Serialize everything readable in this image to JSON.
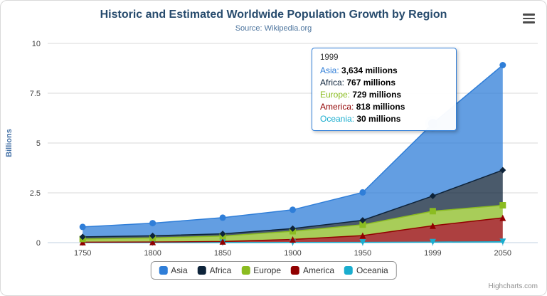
{
  "header": {
    "title": "Historic and Estimated Worldwide Population Growth by Region",
    "subtitle": "Source: Wikipedia.org"
  },
  "chart_data": {
    "type": "area",
    "stacked": true,
    "categories": [
      "1750",
      "1800",
      "1850",
      "1900",
      "1950",
      "1999",
      "2050"
    ],
    "values_unit": "millions",
    "ylabel": "Billions",
    "ylim": [
      0,
      10
    ],
    "yticks": [
      0,
      2.5,
      5,
      7.5,
      10
    ],
    "legend_position": "bottom",
    "grid": true,
    "series": [
      {
        "name": "Asia",
        "color": "#2f7ed8",
        "marker": "circle",
        "values": [
          502,
          635,
          809,
          947,
          1402,
          3634,
          5268
        ]
      },
      {
        "name": "Africa",
        "color": "#0d233a",
        "marker": "diamond",
        "values": [
          106,
          107,
          111,
          133,
          221,
          767,
          1766
        ]
      },
      {
        "name": "Europe",
        "color": "#8bbc21",
        "marker": "square",
        "values": [
          163,
          203,
          276,
          408,
          547,
          729,
          628
        ]
      },
      {
        "name": "America",
        "color": "#910000",
        "marker": "triangle",
        "values": [
          18,
          31,
          54,
          156,
          339,
          818,
          1201
        ]
      },
      {
        "name": "Oceania",
        "color": "#1aadce",
        "marker": "triangle-down",
        "values": [
          2,
          2,
          2,
          6,
          13,
          30,
          46
        ]
      }
    ]
  },
  "tooltip": {
    "header": "1999",
    "rows": [
      {
        "name": "Asia",
        "value": "3,634 millions"
      },
      {
        "name": "Africa",
        "value": "767 millions"
      },
      {
        "name": "Europe",
        "value": "729 millions"
      },
      {
        "name": "America",
        "value": "818 millions"
      },
      {
        "name": "Oceania",
        "value": "30 millions"
      }
    ]
  },
  "credit": {
    "label": "Highcharts.com"
  }
}
